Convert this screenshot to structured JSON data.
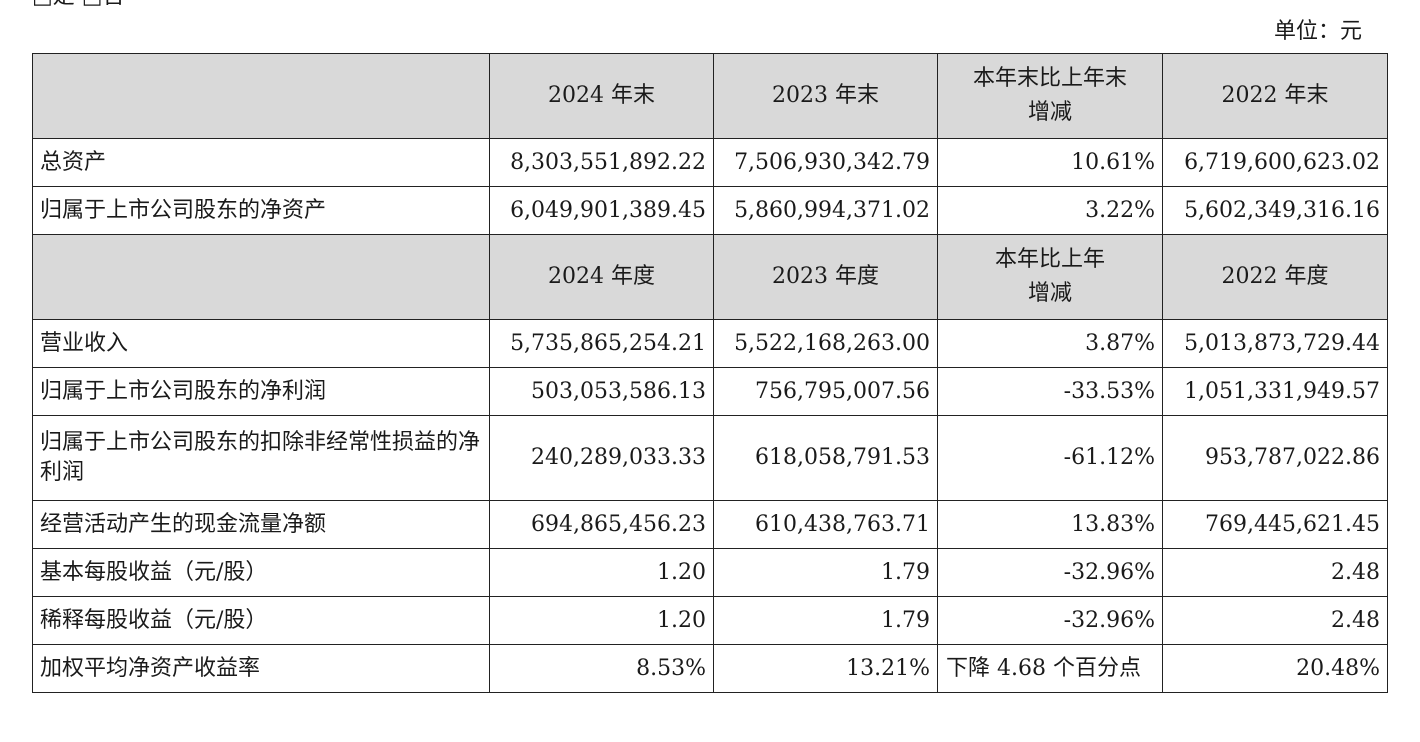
{
  "page": {
    "top_cut_text": "□是 □否",
    "unit": "单位：元"
  },
  "table": {
    "header1": {
      "c1": "2024 年末",
      "c2": "2023 年末",
      "c3_line1": "本年末比上年末",
      "c3_line2": "增减",
      "c4": "2022 年末"
    },
    "header2": {
      "c1": "2024 年度",
      "c2": "2023 年度",
      "c3_line1": "本年比上年",
      "c3_line2": "增减",
      "c4": "2022 年度"
    },
    "rows": [
      {
        "label": "总资产",
        "v2024": "8,303,551,892.22",
        "v2023": "7,506,930,342.79",
        "change": "10.61%",
        "v2022": "6,719,600,623.02"
      },
      {
        "label": "归属于上市公司股东的净资产",
        "v2024": "6,049,901,389.45",
        "v2023": "5,860,994,371.02",
        "change": "3.22%",
        "v2022": "5,602,349,316.16"
      },
      {
        "label": "营业收入",
        "v2024": "5,735,865,254.21",
        "v2023": "5,522,168,263.00",
        "change": "3.87%",
        "v2022": "5,013,873,729.44"
      },
      {
        "label": "归属于上市公司股东的净利润",
        "v2024": "503,053,586.13",
        "v2023": "756,795,007.56",
        "change": "-33.53%",
        "v2022": "1,051,331,949.57"
      },
      {
        "label": "归属于上市公司股东的扣除非经常性损益的净利润",
        "v2024": "240,289,033.33",
        "v2023": "618,058,791.53",
        "change": "-61.12%",
        "v2022": "953,787,022.86"
      },
      {
        "label": "经营活动产生的现金流量净额",
        "v2024": "694,865,456.23",
        "v2023": "610,438,763.71",
        "change": "13.83%",
        "v2022": "769,445,621.45"
      },
      {
        "label": "基本每股收益（元/股）",
        "v2024": "1.20",
        "v2023": "1.79",
        "change": "-32.96%",
        "v2022": "2.48"
      },
      {
        "label": "稀释每股收益（元/股）",
        "v2024": "1.20",
        "v2023": "1.79",
        "change": "-32.96%",
        "v2022": "2.48"
      },
      {
        "label": "加权平均净资产收益率",
        "v2024": "8.53%",
        "v2023": "13.21%",
        "change": "下降 4.68 个百分点",
        "v2022": "20.48%"
      }
    ]
  }
}
